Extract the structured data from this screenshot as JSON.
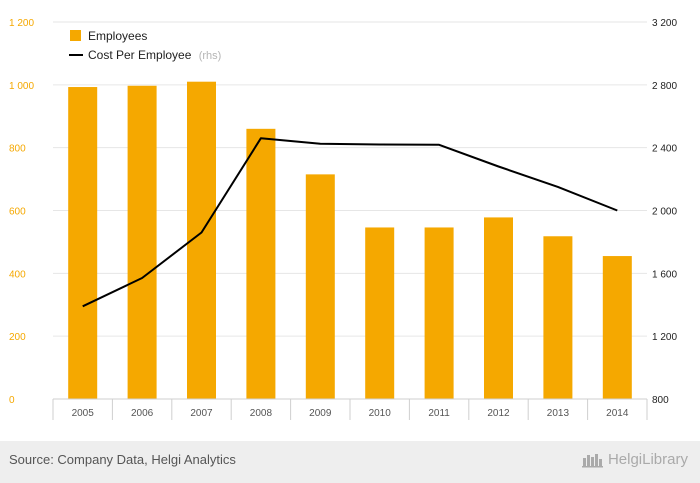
{
  "chart_data": {
    "type": "bar",
    "categories": [
      "2005",
      "2006",
      "2007",
      "2008",
      "2009",
      "2010",
      "2011",
      "2012",
      "2013",
      "2014"
    ],
    "series": [
      {
        "name": "Employees",
        "type": "bar",
        "axis": "left",
        "color": "#f5a800",
        "values": [
          993,
          997,
          1010,
          860,
          715,
          546,
          546,
          578,
          518,
          455
        ]
      },
      {
        "name": "Cost Per Employee",
        "type": "line",
        "axis": "right",
        "color": "#000000",
        "values": [
          1390,
          1570,
          1860,
          2460,
          2425,
          2420,
          2418,
          2280,
          2150,
          2000
        ]
      }
    ],
    "y_left": {
      "ylim": [
        0,
        1200
      ],
      "ticks": [
        0,
        200,
        400,
        600,
        800,
        1000,
        1200
      ],
      "tick_labels": [
        "0",
        "200",
        "400",
        "600",
        "800",
        "1 000",
        "1 200"
      ]
    },
    "y_right": {
      "ylim": [
        800,
        3200
      ],
      "ticks": [
        800,
        1200,
        1600,
        2000,
        2400,
        2800,
        3200
      ],
      "tick_labels": [
        "800",
        "1 200",
        "1 600",
        "2 000",
        "2 400",
        "2 800",
        "3 200"
      ]
    },
    "grid": true,
    "legend": {
      "placement": "top-left",
      "entries": [
        {
          "label": "Employees",
          "note": ""
        },
        {
          "label": "Cost Per Employee",
          "note": "(rhs)"
        }
      ]
    }
  },
  "footer": {
    "source": "Source: Company Data, Helgi Analytics",
    "brand": "HelgiLibrary",
    "brand_icon": "helgi-logo-icon"
  }
}
